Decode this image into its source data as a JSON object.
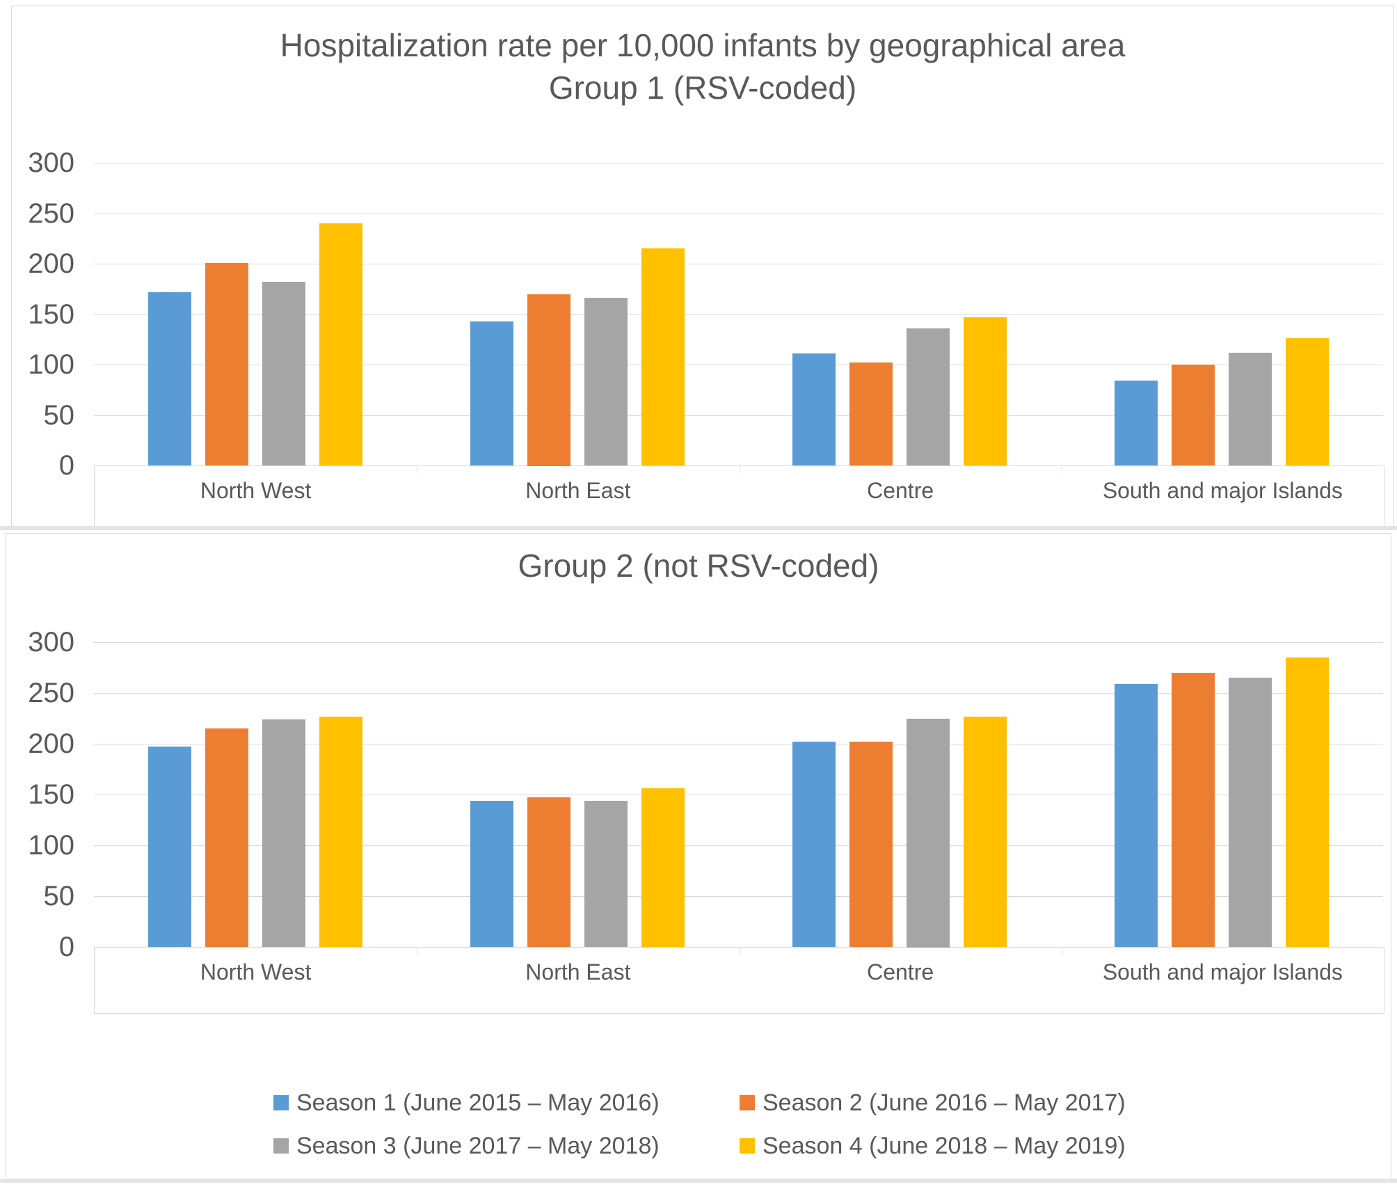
{
  "page": {
    "background": "#FFFFFF",
    "border_color": "#D9D9D9",
    "gridline_color": "#D9D9D9",
    "text_color": "#595959"
  },
  "chart_data": [
    {
      "type": "bar",
      "title": "Hospitalization rate per 10,000 infants by geographical area",
      "subtitle": "Group 1 (RSV-coded)",
      "categories": [
        "North West",
        "North East",
        "Centre",
        "South and major Islands"
      ],
      "series": [
        {
          "name": "Season 1 (June 2015 – May 2016)",
          "color": "#5B9BD5",
          "values": [
            172,
            143,
            111,
            84
          ]
        },
        {
          "name": "Season 2 (June 2016 – May 2017)",
          "color": "#ED7D31",
          "values": [
            201,
            170,
            102,
            100
          ]
        },
        {
          "name": "Season 3 (June 2017 – May 2018)",
          "color": "#A5A5A5",
          "values": [
            182,
            166,
            136,
            112
          ]
        },
        {
          "name": "Season 4 (June 2018 – May 2019)",
          "color": "#FFC000",
          "values": [
            240,
            215,
            147,
            126
          ]
        }
      ],
      "xlabel": "",
      "ylabel": "",
      "ylim": [
        0,
        300
      ],
      "yticks": [
        0,
        50,
        100,
        150,
        200,
        250,
        300
      ],
      "grid": true,
      "legend_position": "none"
    },
    {
      "type": "bar",
      "title": "Group 2 (not RSV-coded)",
      "subtitle": "",
      "categories": [
        "North West",
        "North East",
        "Centre",
        "South and major Islands"
      ],
      "series": [
        {
          "name": "Season 1 (June 2015 – May 2016)",
          "color": "#5B9BD5",
          "values": [
            197,
            144,
            202,
            259
          ]
        },
        {
          "name": "Season 2 (June 2016 – May 2017)",
          "color": "#ED7D31",
          "values": [
            215,
            147,
            202,
            270
          ]
        },
        {
          "name": "Season 3 (June 2017 – May 2018)",
          "color": "#A5A5A5",
          "values": [
            224,
            144,
            225,
            265
          ]
        },
        {
          "name": "Season 4 (June 2018 – May 2019)",
          "color": "#FFC000",
          "values": [
            227,
            156,
            227,
            285
          ]
        }
      ],
      "xlabel": "",
      "ylabel": "",
      "ylim": [
        0,
        300
      ],
      "yticks": [
        0,
        50,
        100,
        150,
        200,
        250,
        300
      ],
      "grid": true,
      "legend_position": "bottom"
    }
  ],
  "legend": {
    "rows": [
      [
        0,
        1
      ],
      [
        2,
        3
      ]
    ]
  }
}
